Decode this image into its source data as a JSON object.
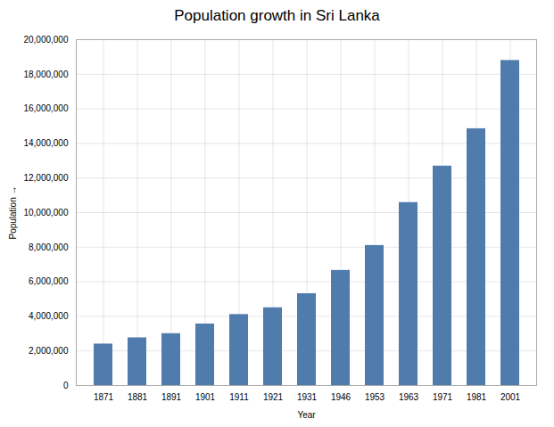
{
  "chart_data": {
    "type": "bar",
    "title": "Population growth in Sri Lanka",
    "xlabel": "Year",
    "ylabel": "Population",
    "categories": [
      "1871",
      "1881",
      "1891",
      "1901",
      "1911",
      "1921",
      "1931",
      "1946",
      "1953",
      "1963",
      "1971",
      "1981",
      "2001"
    ],
    "values": [
      2400000,
      2760000,
      3000000,
      3560000,
      4106000,
      4498000,
      5312000,
      6657000,
      8098000,
      10582000,
      12689000,
      14850000,
      18797000
    ],
    "color": "#4f7cac",
    "ylim": [
      0,
      20000000
    ],
    "yticks": [
      0,
      {
        "value": 2000000,
        "label": "2,000,000"
      },
      {
        "value": 4000000,
        "label": "4,000,000"
      },
      {
        "value": 6000000,
        "label": "6,000,000"
      },
      {
        "value": 8000000,
        "label": "8,000,000"
      },
      {
        "value": 10000000,
        "label": "10,000,000"
      },
      {
        "value": 12000000,
        "label": "12,000,000"
      },
      {
        "value": 14000000,
        "label": "14,000,000"
      },
      {
        "value": 16000000,
        "label": "16,000,000"
      },
      {
        "value": 18000000,
        "label": "18,000,000"
      },
      {
        "value": 20000000,
        "label": "20,000,000"
      }
    ],
    "grid": true
  }
}
